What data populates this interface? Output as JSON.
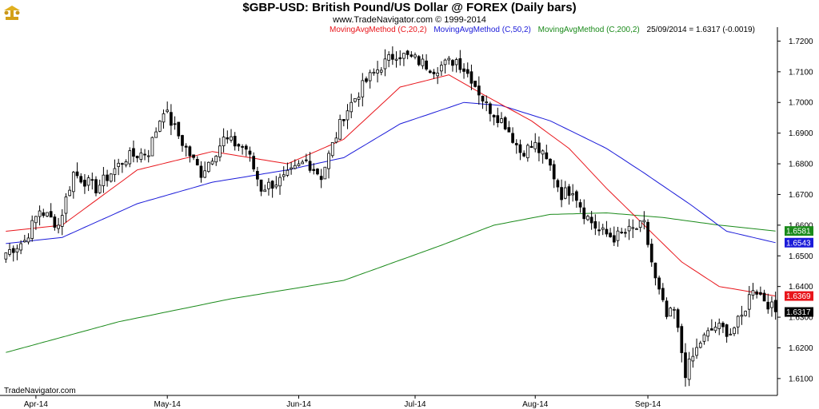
{
  "header": {
    "title": "$GBP-USD:  British Pound/US Dollar @ FOREX  (Daily bars)",
    "copyright": "www.TradeNavigator.com © 1999-2014"
  },
  "legend": {
    "ma20": "MovingAvgMethod (C,20,2)",
    "ma50": "MovingAvgMethod (C,50,2)",
    "ma200": "MovingAvgMethod (C,200,2)",
    "last": "25/09/2014 = 1.6317 (-0.0019)"
  },
  "brand": "TradeNavigator.com",
  "colors": {
    "ma20": "#e8151b",
    "ma50": "#1b1bd9",
    "ma200": "#1a8a1a",
    "candle": "#000000"
  },
  "chart_data": {
    "type": "candlestick",
    "title": "$GBP-USD:  British Pound/US Dollar @ FOREX  (Daily bars)",
    "x_tick_labels": [
      "Apr-14",
      "May-14",
      "Jun-14",
      "Jul-14",
      "Aug-14",
      "Sep-14"
    ],
    "x_tick_bar_index": [
      8,
      43,
      78,
      109,
      141,
      171
    ],
    "y_ticks": [
      1.61,
      1.62,
      1.63,
      1.64,
      1.65,
      1.66,
      1.67,
      1.68,
      1.69,
      1.7,
      1.71,
      1.72
    ],
    "y_tick_labels": [
      "1.6100",
      "1.6200",
      "1.6300",
      "1.6400",
      "1.6500",
      "1.6600",
      "1.6700",
      "1.6800",
      "1.6900",
      "1.7000",
      "1.7100",
      "1.7200"
    ],
    "ylim": [
      1.6045,
      1.7235
    ],
    "price_tags": [
      {
        "label": "1.6581",
        "value": 1.6581,
        "series": "ma200"
      },
      {
        "label": "1.6543",
        "value": 1.6543,
        "series": "ma50"
      },
      {
        "label": "1.6369",
        "value": 1.6369,
        "series": "ma20"
      },
      {
        "label": "1.6317",
        "value": 1.6317,
        "series": "close"
      }
    ],
    "close_anchors": [
      [
        0,
        1.651
      ],
      [
        5,
        1.655
      ],
      [
        9,
        1.665
      ],
      [
        14,
        1.66
      ],
      [
        18,
        1.677
      ],
      [
        24,
        1.672
      ],
      [
        32,
        1.682
      ],
      [
        38,
        1.684
      ],
      [
        42,
        1.698
      ],
      [
        47,
        1.687
      ],
      [
        52,
        1.677
      ],
      [
        58,
        1.688
      ],
      [
        64,
        1.685
      ],
      [
        68,
        1.672
      ],
      [
        74,
        1.675
      ],
      [
        80,
        1.681
      ],
      [
        84,
        1.676
      ],
      [
        90,
        1.696
      ],
      [
        96,
        1.707
      ],
      [
        100,
        1.712
      ],
      [
        104,
        1.716
      ],
      [
        109,
        1.714
      ],
      [
        114,
        1.711
      ],
      [
        120,
        1.714
      ],
      [
        124,
        1.708
      ],
      [
        128,
        1.699
      ],
      [
        133,
        1.693
      ],
      [
        137,
        1.684
      ],
      [
        141,
        1.686
      ],
      [
        145,
        1.679
      ],
      [
        148,
        1.67
      ],
      [
        151,
        1.672
      ],
      [
        154,
        1.664
      ],
      [
        158,
        1.658
      ],
      [
        162,
        1.656
      ],
      [
        166,
        1.658
      ],
      [
        170,
        1.66
      ],
      [
        173,
        1.642
      ],
      [
        176,
        1.63
      ],
      [
        178,
        1.632
      ],
      [
        181,
        1.612
      ],
      [
        185,
        1.622
      ],
      [
        189,
        1.627
      ],
      [
        193,
        1.625
      ],
      [
        196,
        1.63
      ],
      [
        199,
        1.64
      ],
      [
        202,
        1.636
      ],
      [
        205,
        1.6317
      ]
    ],
    "ma20_anchors": [
      [
        0,
        1.658
      ],
      [
        15,
        1.66
      ],
      [
        35,
        1.678
      ],
      [
        55,
        1.684
      ],
      [
        75,
        1.68
      ],
      [
        90,
        1.688
      ],
      [
        105,
        1.705
      ],
      [
        118,
        1.709
      ],
      [
        128,
        1.702
      ],
      [
        140,
        1.694
      ],
      [
        150,
        1.685
      ],
      [
        160,
        1.672
      ],
      [
        170,
        1.66
      ],
      [
        180,
        1.648
      ],
      [
        190,
        1.64
      ],
      [
        205,
        1.6369
      ]
    ],
    "ma50_anchors": [
      [
        0,
        1.654
      ],
      [
        15,
        1.656
      ],
      [
        35,
        1.667
      ],
      [
        55,
        1.674
      ],
      [
        75,
        1.678
      ],
      [
        90,
        1.682
      ],
      [
        105,
        1.693
      ],
      [
        122,
        1.7
      ],
      [
        132,
        1.699
      ],
      [
        145,
        1.694
      ],
      [
        160,
        1.685
      ],
      [
        170,
        1.677
      ],
      [
        182,
        1.667
      ],
      [
        192,
        1.658
      ],
      [
        205,
        1.6543
      ]
    ],
    "ma200_anchors": [
      [
        0,
        1.6185
      ],
      [
        30,
        1.6285
      ],
      [
        60,
        1.636
      ],
      [
        90,
        1.642
      ],
      [
        115,
        1.653
      ],
      [
        130,
        1.66
      ],
      [
        145,
        1.6635
      ],
      [
        160,
        1.664
      ],
      [
        175,
        1.6625
      ],
      [
        190,
        1.66
      ],
      [
        205,
        1.6581
      ]
    ]
  }
}
